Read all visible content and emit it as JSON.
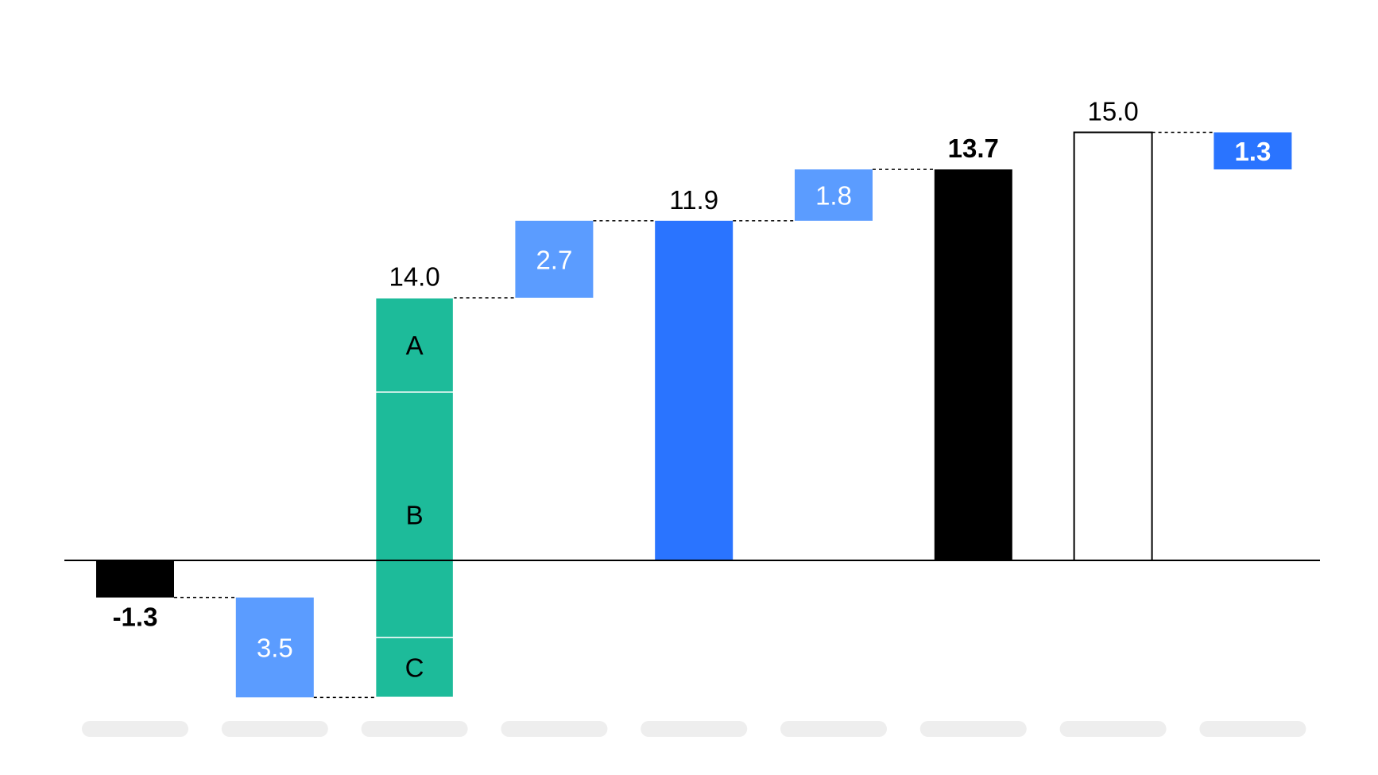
{
  "chart_data": {
    "type": "waterfall",
    "title": "",
    "xlabel": "",
    "ylabel": "",
    "ylim": [
      -4.8,
      16.5
    ],
    "categories": [
      "",
      "",
      "",
      "",
      "",
      "",
      "",
      "",
      ""
    ],
    "bars": [
      {
        "start": 0.0,
        "end": -1.3,
        "label": "-1.3",
        "kind": "total-neg",
        "color": "#000000",
        "label_color": "#000000",
        "bold": true,
        "label_pos": "below"
      },
      {
        "start": -1.3,
        "end": -4.8,
        "label": "3.5",
        "kind": "delta",
        "color": "#5b9cff",
        "label_color": "#ffffff",
        "bold": false,
        "label_pos": "inside"
      },
      {
        "start": -4.8,
        "end": 9.2,
        "label": "14.0",
        "kind": "stacked",
        "color": "#1dbb9a",
        "label_color": "#000000",
        "bold": false,
        "label_pos": "above",
        "segments": [
          {
            "name": "C",
            "value": 2.1
          },
          {
            "name": "B",
            "value": 8.6
          },
          {
            "name": "A",
            "value": 3.3
          }
        ]
      },
      {
        "start": 9.2,
        "end": 11.9,
        "label": "2.7",
        "kind": "delta",
        "color": "#5b9cff",
        "label_color": "#ffffff",
        "bold": false,
        "label_pos": "inside"
      },
      {
        "start": 0.0,
        "end": 11.9,
        "label": "11.9",
        "kind": "total",
        "color": "#2a74ff",
        "label_color": "#000000",
        "bold": false,
        "label_pos": "above"
      },
      {
        "start": 11.9,
        "end": 13.7,
        "label": "1.8",
        "kind": "delta",
        "color": "#5b9cff",
        "label_color": "#ffffff",
        "bold": false,
        "label_pos": "inside"
      },
      {
        "start": 0.0,
        "end": 13.7,
        "label": "13.7",
        "kind": "total",
        "color": "#000000",
        "label_color": "#000000",
        "bold": true,
        "label_pos": "above"
      },
      {
        "start": 0.0,
        "end": 15.0,
        "label": "15.0",
        "kind": "outline",
        "color": "#ffffff",
        "label_color": "#000000",
        "bold": false,
        "label_pos": "above"
      },
      {
        "start": 15.0,
        "end": 13.7,
        "label": "1.3",
        "kind": "delta",
        "color": "#2a74ff",
        "label_color": "#ffffff",
        "bold": true,
        "label_pos": "inside"
      }
    ],
    "connectors": true,
    "grid": false,
    "legend": "none"
  }
}
